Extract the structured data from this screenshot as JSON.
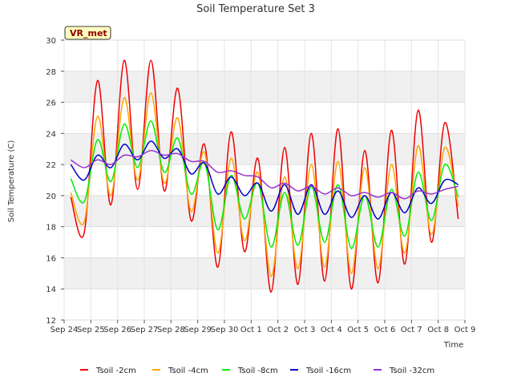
{
  "chart_data": {
    "type": "line",
    "title": "Soil Temperature Set 3",
    "xlabel": "Time",
    "ylabel": "Soil Temperature (C)",
    "badge": "VR_met",
    "ylim": [
      12,
      30
    ],
    "yticks": [
      12,
      14,
      16,
      18,
      20,
      22,
      24,
      26,
      28,
      30
    ],
    "xlim": [
      "Sep 24",
      "Oct 9"
    ],
    "xticks": [
      "Sep 24",
      "Sep 25",
      "Sep 26",
      "Sep 27",
      "Sep 28",
      "Sep 29",
      "Sep 30",
      "Oct 1",
      "Oct 2",
      "Oct 3",
      "Oct 4",
      "Oct 5",
      "Oct 6",
      "Oct 7",
      "Oct 8",
      "Oct 9"
    ],
    "grid": "horizontal bands",
    "legend_position": "bottom",
    "x": [
      "Sep 24 06:00",
      "Sep 24 18:00",
      "Sep 25 06:00",
      "Sep 25 18:00",
      "Sep 26 06:00",
      "Sep 26 18:00",
      "Sep 27 06:00",
      "Sep 27 18:00",
      "Sep 28 06:00",
      "Sep 28 18:00",
      "Sep 29 06:00",
      "Sep 29 18:00",
      "Sep 30 06:00",
      "Sep 30 18:00",
      "Oct 1 06:00",
      "Oct 1 18:00",
      "Oct 2 06:00",
      "Oct 2 18:00",
      "Oct 3 06:00",
      "Oct 3 18:00",
      "Oct 4 06:00",
      "Oct 4 18:00",
      "Oct 5 06:00",
      "Oct 5 18:00",
      "Oct 6 06:00",
      "Oct 6 18:00",
      "Oct 7 06:00",
      "Oct 7 18:00",
      "Oct 8 06:00",
      "Oct 8 18:00"
    ],
    "series": [
      {
        "name": "Tsoil -2cm",
        "color": "#ee0000",
        "values": [
          19.9,
          17.6,
          27.4,
          19.4,
          28.7,
          20.4,
          28.7,
          20.3,
          26.9,
          18.4,
          23.3,
          15.4,
          24.1,
          16.4,
          22.4,
          13.8,
          23.1,
          14.3,
          24.0,
          14.5,
          24.3,
          14.0,
          22.9,
          14.4,
          24.2,
          15.6,
          25.5,
          17.0,
          24.7,
          18.5
        ]
      },
      {
        "name": "Tsoil -4cm",
        "color": "#ffa500",
        "values": [
          20.2,
          18.3,
          25.1,
          20.0,
          26.3,
          21.0,
          26.6,
          20.8,
          25.0,
          19.0,
          22.8,
          16.3,
          22.4,
          17.1,
          21.5,
          14.8,
          21.2,
          15.3,
          22.0,
          15.4,
          22.2,
          15.0,
          21.8,
          15.3,
          22.0,
          16.3,
          23.2,
          17.5,
          23.1,
          19.3
        ]
      },
      {
        "name": "Tsoil -8cm",
        "color": "#00ee00",
        "values": [
          21.1,
          19.6,
          23.6,
          20.9,
          24.6,
          21.8,
          24.8,
          21.5,
          23.7,
          20.1,
          22.1,
          17.8,
          21.3,
          18.5,
          20.8,
          16.7,
          20.2,
          16.8,
          20.6,
          17.0,
          20.7,
          16.6,
          20.0,
          16.7,
          20.4,
          17.4,
          21.5,
          18.4,
          22.0,
          19.9
        ]
      },
      {
        "name": "Tsoil -16cm",
        "color": "#0000cc",
        "values": [
          22.0,
          21.0,
          22.6,
          21.8,
          23.3,
          22.3,
          23.5,
          22.4,
          23.0,
          21.4,
          22.1,
          20.1,
          21.2,
          20.0,
          20.8,
          19.0,
          20.7,
          18.8,
          20.7,
          18.8,
          20.3,
          18.6,
          20.0,
          18.5,
          20.2,
          18.9,
          20.5,
          19.5,
          21.0,
          20.7
        ]
      },
      {
        "name": "Tsoil -32cm",
        "color": "#9933cc",
        "values": [
          22.3,
          21.8,
          22.3,
          22.0,
          22.6,
          22.5,
          22.9,
          22.6,
          22.7,
          22.2,
          22.2,
          21.5,
          21.6,
          21.3,
          21.2,
          20.5,
          20.8,
          20.3,
          20.6,
          20.1,
          20.5,
          20.0,
          20.2,
          19.9,
          20.2,
          19.8,
          20.3,
          20.1,
          20.4,
          20.6
        ]
      }
    ]
  }
}
